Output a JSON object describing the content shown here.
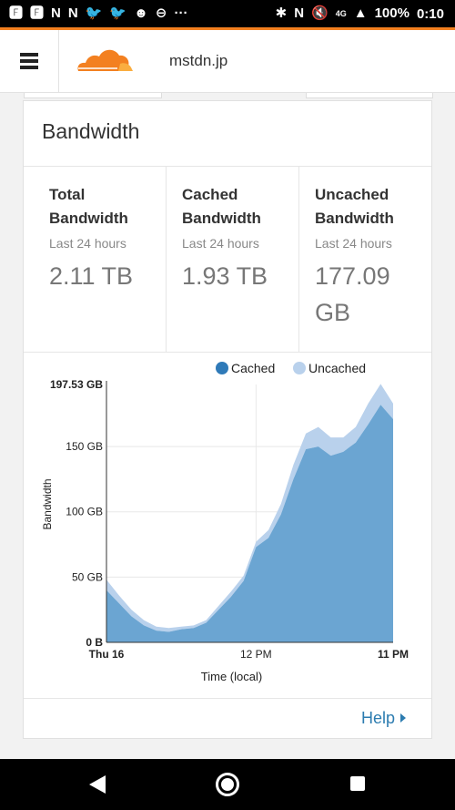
{
  "status_bar": {
    "left_icons": [
      "F",
      "F",
      "N",
      "N",
      "twitter",
      "twitter",
      "android",
      "minus"
    ],
    "left_glyphs": [
      "🅵",
      "🅵",
      "N",
      "N",
      "🐦",
      "🐦",
      "☻",
      "⊖"
    ],
    "more": "···",
    "right_glyphs": [
      "✱",
      "N",
      "🔇",
      "4G",
      "▲"
    ],
    "battery": "100%",
    "time": "0:10"
  },
  "header": {
    "site": "mstdn.jp",
    "accent_color": "#f38020"
  },
  "card": {
    "title": "Bandwidth",
    "stats": [
      {
        "label": "Total Bandwidth",
        "period": "Last 24 hours",
        "value": "2.11 TB"
      },
      {
        "label": "Cached Bandwidth",
        "period": "Last 24 hours",
        "value": "1.93 TB"
      },
      {
        "label": "Uncached Bandwidth",
        "period": "Last 24 hours",
        "value": "177.09 GB"
      }
    ],
    "help": "Help"
  },
  "chart_data": {
    "type": "area",
    "ylabel": "Bandwidth",
    "xlabel": "Time (local)",
    "y_max_label": "197.53 GB",
    "y_ticks": [
      "0 B",
      "50 GB",
      "100 GB",
      "150 GB"
    ],
    "y_tick_values": [
      0,
      50,
      100,
      150
    ],
    "ylim": [
      0,
      197.53
    ],
    "x_tick_labels": [
      "Thu 16",
      "12 PM",
      "11 PM"
    ],
    "x_tick_hours": [
      0,
      12,
      23
    ],
    "legend": [
      {
        "name": "Cached",
        "color": "#2f7ab8"
      },
      {
        "name": "Uncached",
        "color": "#b9d1ec"
      }
    ],
    "legend_position": "top",
    "series": [
      {
        "name": "Cached",
        "color": "#6ba5d2",
        "values": [
          40,
          30,
          20,
          13,
          9,
          8,
          10,
          11,
          15,
          25,
          35,
          47,
          73,
          80,
          98,
          125,
          148,
          150,
          143,
          146,
          153,
          167,
          182,
          171
        ]
      },
      {
        "name": "Uncached",
        "color": "#b9d1ec",
        "values": [
          8,
          6,
          5,
          4,
          3,
          3,
          2,
          2,
          2,
          3,
          4,
          4,
          4,
          6,
          8,
          11,
          12,
          15,
          14,
          11,
          12,
          16,
          16,
          12
        ]
      }
    ]
  }
}
